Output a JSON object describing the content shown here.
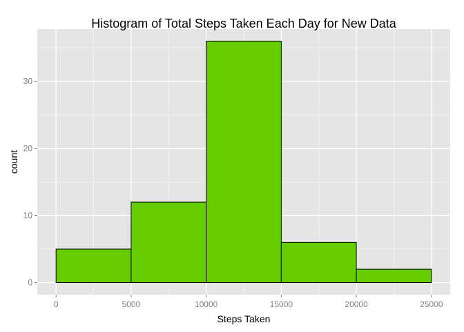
{
  "chart_data": {
    "type": "bar",
    "title": "Histogram of Total Steps Taken Each Day for New Data",
    "xlabel": "Steps Taken",
    "ylabel": "count",
    "bins": [
      {
        "x0": 0,
        "x1": 5000,
        "count": 5
      },
      {
        "x0": 5000,
        "x1": 10000,
        "count": 12
      },
      {
        "x0": 10000,
        "x1": 15000,
        "count": 36
      },
      {
        "x0": 15000,
        "x1": 20000,
        "count": 6
      },
      {
        "x0": 20000,
        "x1": 25000,
        "count": 2
      }
    ],
    "xlim": [
      -1250,
      26250
    ],
    "ylim": [
      -1.8,
      37.8
    ],
    "x_ticks": [
      0,
      5000,
      10000,
      15000,
      20000,
      25000
    ],
    "x_tick_labels": [
      "0",
      "5000",
      "10000",
      "15000",
      "20000",
      "25000"
    ],
    "y_ticks": [
      0,
      10,
      20,
      30
    ],
    "y_tick_labels": [
      "0",
      "10",
      "20",
      "30"
    ],
    "grid": true,
    "colors": {
      "bar_fill": "#66CC00",
      "bar_stroke": "#000000",
      "panel": "#E5E5E5",
      "grid_major": "#FFFFFF",
      "grid_minor": "#F2F2F2",
      "tick_text": "#7F7F7F"
    }
  }
}
